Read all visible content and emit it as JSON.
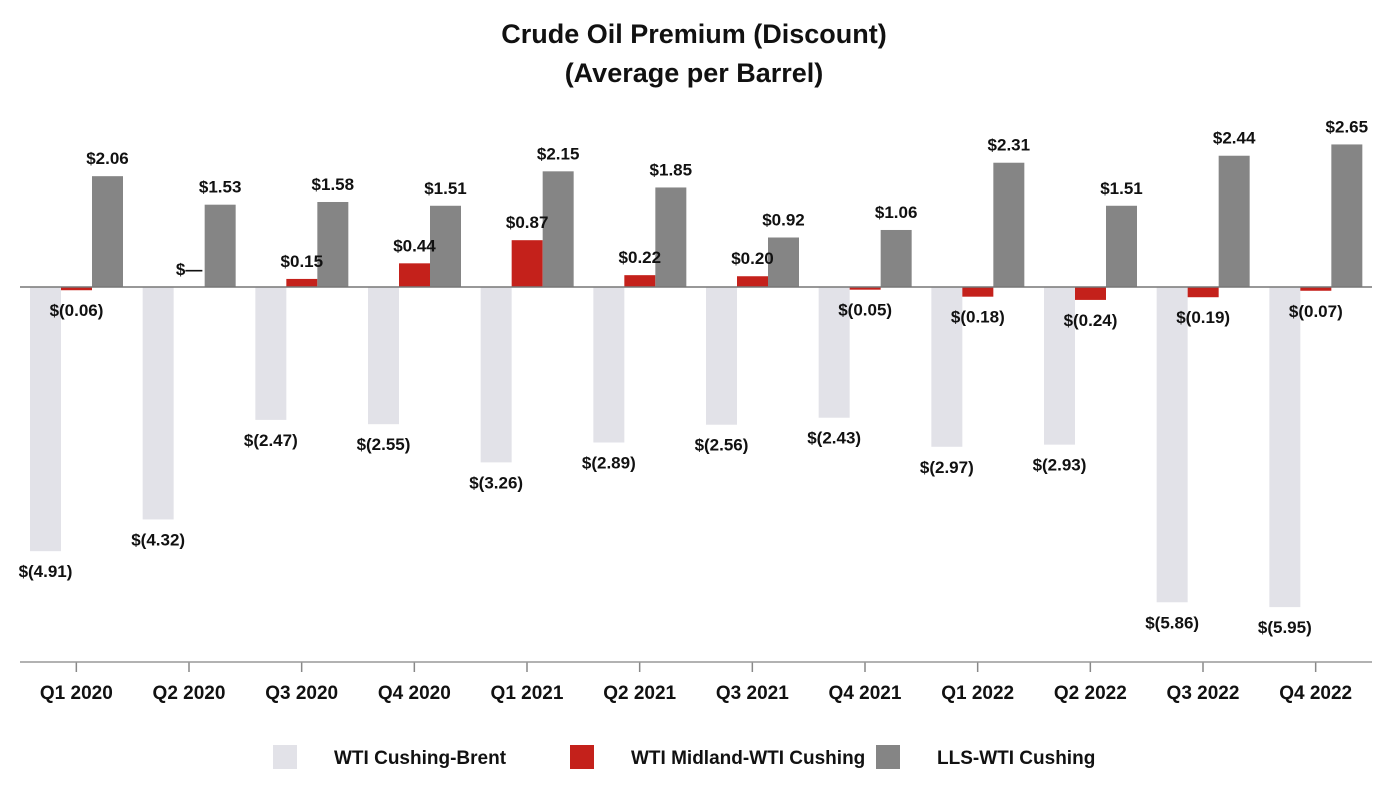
{
  "chart_data": {
    "type": "bar",
    "title": "Crude Oil Premium (Discount)",
    "subtitle": "(Average per Barrel)",
    "xlabel": "",
    "ylabel": "",
    "ylim": [
      -6.5,
      3.0
    ],
    "grid": false,
    "legend_position": "bottom",
    "categories": [
      "Q1 2020",
      "Q2 2020",
      "Q3 2020",
      "Q4 2020",
      "Q1 2021",
      "Q2 2021",
      "Q3 2021",
      "Q4 2021",
      "Q1 2022",
      "Q2 2022",
      "Q3 2022",
      "Q4 2022"
    ],
    "series": [
      {
        "name": "WTI Cushing-Brent",
        "color": "#e2e2e8",
        "values": [
          -4.91,
          -4.32,
          -2.47,
          -2.55,
          -3.26,
          -2.89,
          -2.56,
          -2.43,
          -2.97,
          -2.93,
          -5.86,
          -5.95
        ],
        "labels": [
          "$(4.91)",
          "$(4.32)",
          "$(2.47)",
          "$(2.55)",
          "$(3.26)",
          "$(2.89)",
          "$(2.56)",
          "$(2.43)",
          "$(2.97)",
          "$(2.93)",
          "$(5.86)",
          "$(5.95)"
        ]
      },
      {
        "name": "WTI Midland-WTI Cushing",
        "color": "#c4211b",
        "values": [
          -0.06,
          0,
          0.15,
          0.44,
          0.87,
          0.22,
          0.2,
          -0.05,
          -0.18,
          -0.24,
          -0.19,
          -0.07
        ],
        "labels": [
          "$(0.06)",
          "$—",
          "$0.15",
          "$0.44",
          "$0.87",
          "$0.22",
          "$0.20",
          "$(0.05)",
          "$(0.18)",
          "$(0.24)",
          "$(0.19)",
          "$(0.07)"
        ]
      },
      {
        "name": "LLS-WTI Cushing",
        "color": "#858585",
        "values": [
          2.06,
          1.53,
          1.58,
          1.51,
          2.15,
          1.85,
          0.92,
          1.06,
          2.31,
          1.51,
          2.44,
          2.65
        ],
        "labels": [
          "$2.06",
          "$1.53",
          "$1.58",
          "$1.51",
          "$2.15",
          "$1.85",
          "$0.92",
          "$1.06",
          "$2.31",
          "$1.51",
          "$2.44",
          "$2.65"
        ]
      }
    ]
  }
}
